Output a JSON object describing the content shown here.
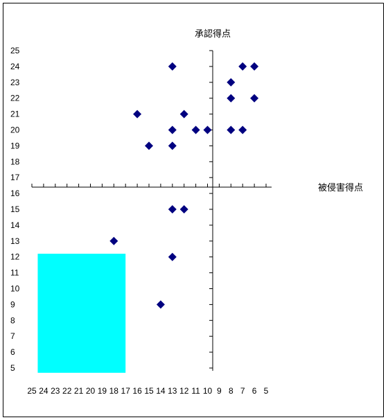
{
  "chart_data": {
    "type": "scatter",
    "title": "",
    "xlabel": "被侵害得点",
    "ylabel": "承認得点",
    "x_axis": {
      "min": 5,
      "max": 25,
      "reversed": true,
      "cross_at_y": 16.8,
      "tick_labels": [
        "25",
        "24",
        "23",
        "22",
        "21",
        "20",
        "19",
        "18",
        "17",
        "16",
        "15",
        "14",
        "13",
        "12",
        "11",
        "10",
        "9",
        "8",
        "7",
        "6",
        "5"
      ]
    },
    "y_axis": {
      "min": 5,
      "max": 25,
      "cross_at_x": 12.5,
      "tick_labels": [
        "25",
        "24",
        "23",
        "22",
        "21",
        "20",
        "19",
        "18",
        "17",
        "16",
        "15",
        "14",
        "13",
        "12",
        "11",
        "10",
        "9",
        "8",
        "7",
        "6",
        "5"
      ]
    },
    "grid": false,
    "legend": "none",
    "marker": {
      "shape": "diamond",
      "color": "#000080"
    },
    "highlight_region": {
      "color": "#00FFFF",
      "x_range": [
        17,
        24.5
      ],
      "y_range": [
        4.7,
        12.2
      ]
    },
    "series": [
      {
        "points": [
          {
            "x": 13,
            "y": 24
          },
          {
            "x": 7,
            "y": 24
          },
          {
            "x": 6,
            "y": 24
          },
          {
            "x": 8,
            "y": 23
          },
          {
            "x": 8,
            "y": 22
          },
          {
            "x": 6,
            "y": 22
          },
          {
            "x": 16,
            "y": 21
          },
          {
            "x": 12,
            "y": 21
          },
          {
            "x": 13,
            "y": 20
          },
          {
            "x": 11,
            "y": 20
          },
          {
            "x": 10,
            "y": 20
          },
          {
            "x": 8,
            "y": 20
          },
          {
            "x": 7,
            "y": 20
          },
          {
            "x": 15,
            "y": 19
          },
          {
            "x": 13,
            "y": 19
          },
          {
            "x": 13,
            "y": 15
          },
          {
            "x": 12,
            "y": 15
          },
          {
            "x": 18,
            "y": 13
          },
          {
            "x": 13,
            "y": 12
          },
          {
            "x": 14,
            "y": 9
          }
        ]
      }
    ]
  }
}
